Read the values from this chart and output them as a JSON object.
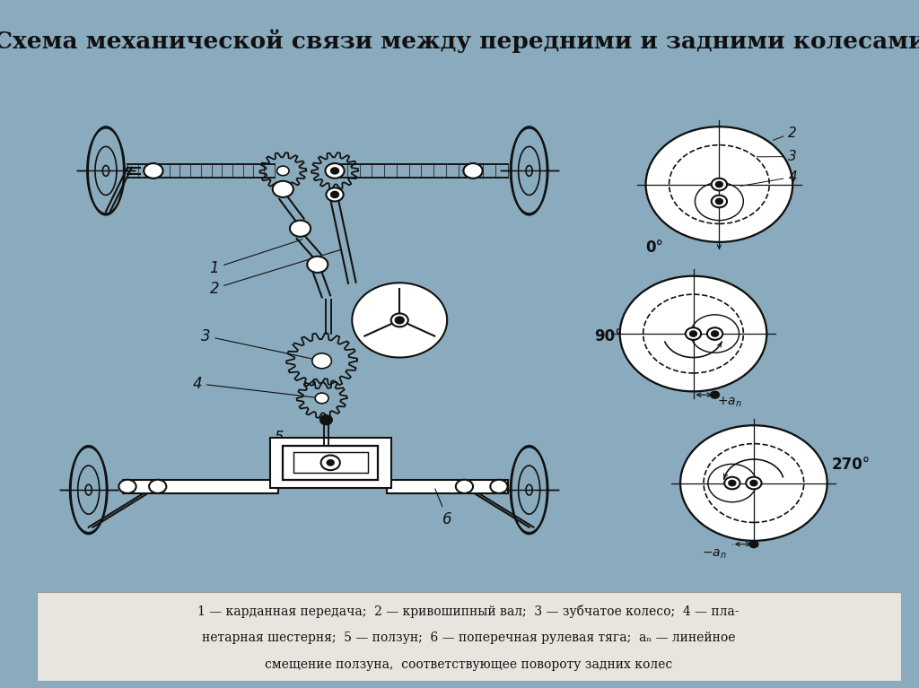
{
  "title": "Схема механической связи между передними и задними колесами",
  "title_fontsize": 19,
  "title_color": "#111111",
  "bg_outer": "#8aabbd",
  "bg_diagram": "#ffffff",
  "bg_footer": "#e8e5de",
  "header_bg": "#7fb5cc",
  "lc": "#111111",
  "lw": 1.5,
  "footer_lines": [
    "1 — карданная передача;  2 — кривошипный вал;  3 — зубчатое колесо;  4 — пла-",
    "нетарная шестерня;  5 — ползун;  6 — поперечная рулевая тяга;  aₙ — линейное",
    "смещение ползуна,  соответствующее повороту задних колес"
  ]
}
